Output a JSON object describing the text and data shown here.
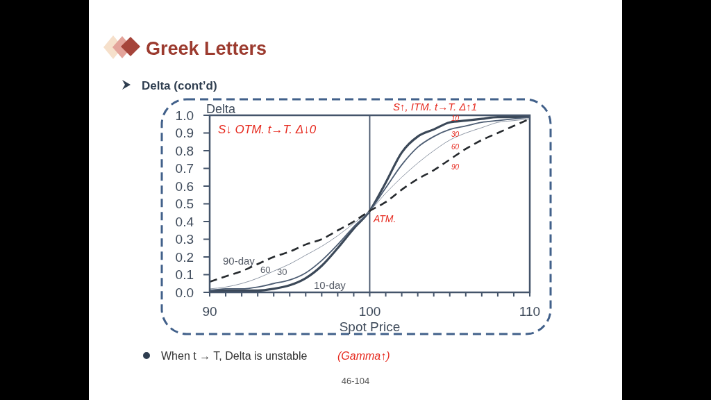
{
  "chart_data": {
    "type": "line",
    "title": "Greek Letters",
    "subtitle": "Delta (cont’d)",
    "xlabel": "Spot Price",
    "ylabel": "Delta",
    "x": [
      90,
      91,
      92,
      93,
      94,
      95,
      96,
      97,
      98,
      99,
      100,
      101,
      102,
      103,
      104,
      105,
      106,
      107,
      108,
      109,
      110
    ],
    "series": [
      {
        "name": "10-day",
        "color": "#3b4858",
        "values": [
          0.01,
          0.01,
          0.01,
          0.01,
          0.02,
          0.04,
          0.08,
          0.15,
          0.25,
          0.36,
          0.46,
          0.62,
          0.79,
          0.88,
          0.92,
          0.96,
          0.97,
          0.98,
          0.99,
          0.99,
          0.99
        ]
      },
      {
        "name": "30",
        "color": "#4d5d73",
        "values": [
          0.01,
          0.02,
          0.02,
          0.03,
          0.05,
          0.07,
          0.11,
          0.18,
          0.27,
          0.37,
          0.46,
          0.59,
          0.72,
          0.82,
          0.88,
          0.92,
          0.94,
          0.96,
          0.97,
          0.98,
          0.99
        ]
      },
      {
        "name": "60",
        "color": "#8e97a5",
        "values": [
          0.02,
          0.03,
          0.05,
          0.08,
          0.12,
          0.16,
          0.21,
          0.26,
          0.32,
          0.39,
          0.46,
          0.56,
          0.65,
          0.73,
          0.8,
          0.86,
          0.9,
          0.93,
          0.96,
          0.97,
          0.98
        ]
      },
      {
        "name": "90-day",
        "color": "#262a2e",
        "line_style": "dashed",
        "values": [
          0.06,
          0.09,
          0.12,
          0.16,
          0.2,
          0.23,
          0.27,
          0.3,
          0.35,
          0.4,
          0.46,
          0.51,
          0.58,
          0.64,
          0.69,
          0.75,
          0.81,
          0.86,
          0.9,
          0.94,
          0.98
        ]
      }
    ],
    "xlim": [
      90,
      110
    ],
    "ylim": [
      0,
      1
    ],
    "xticks": [
      90,
      {
        "value": 91,
        "label": null
      },
      {
        "value": 92,
        "label": null
      },
      {
        "value": 93,
        "label": null
      },
      {
        "value": 94,
        "label": null
      },
      {
        "value": 95,
        "label": null
      },
      {
        "value": 96,
        "label": null
      },
      {
        "value": 97,
        "label": null
      },
      {
        "value": 98,
        "label": null
      },
      {
        "value": 99,
        "label": null
      },
      100,
      {
        "value": 101,
        "label": null
      },
      {
        "value": 102,
        "label": null
      },
      {
        "value": 103,
        "label": null
      },
      {
        "value": 104,
        "label": null
      },
      {
        "value": 105,
        "label": null
      },
      {
        "value": 106,
        "label": null
      },
      {
        "value": 107,
        "label": null
      },
      {
        "value": 108,
        "label": null
      },
      {
        "value": 109,
        "label": null
      },
      110
    ],
    "yticks": [
      {
        "value": 0,
        "label": "0.0"
      },
      0.1,
      0.2,
      0.3,
      0.4,
      0.5,
      0.6,
      0.7,
      0.8,
      0.9,
      {
        "value": 1,
        "label": "1.0"
      }
    ],
    "ref_lines": [
      {
        "axis": "x",
        "value": 100,
        "color": "#44546a"
      }
    ],
    "annotations": [
      "When t → T, Delta is unstable",
      "46-104",
      "S↓ OTM. t→T. Δ↓0",
      "S↑, ITM. t→T. Δ↑1",
      "ATM.",
      "(Gamma↑)",
      "10",
      "30",
      "60",
      "90"
    ]
  }
}
